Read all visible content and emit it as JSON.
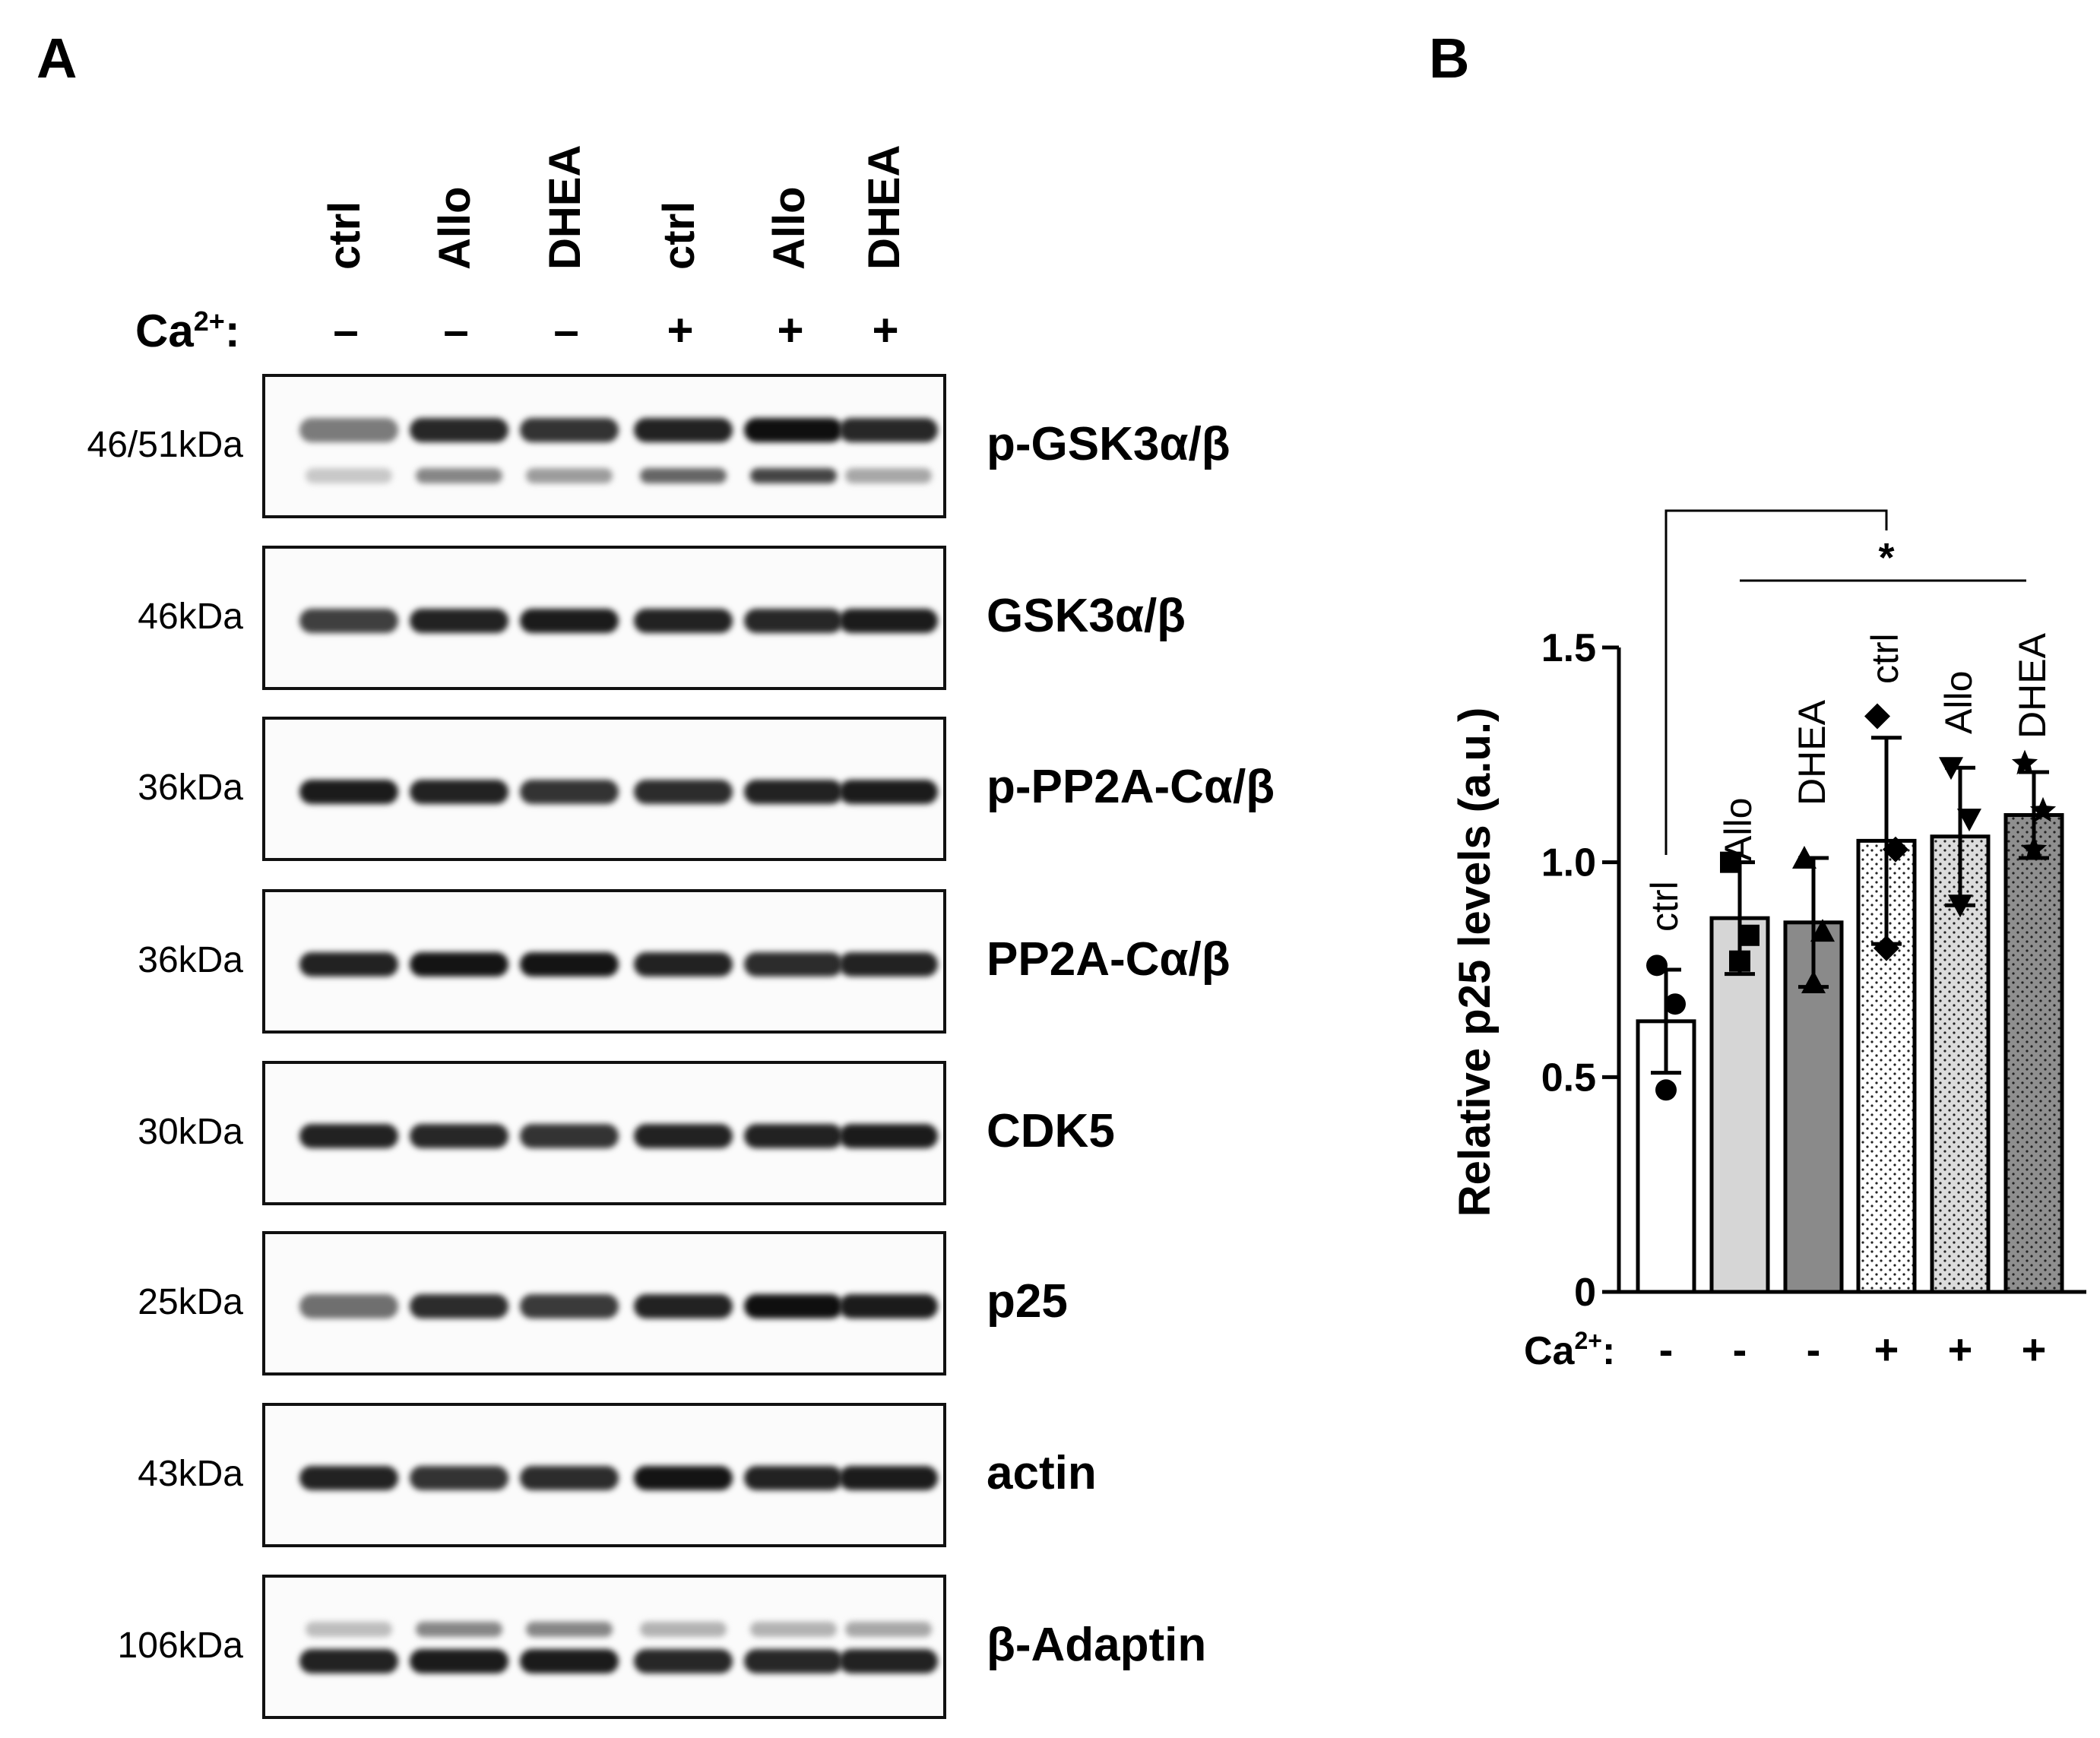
{
  "panels": {
    "a_label": "A",
    "b_label": "B"
  },
  "blot": {
    "lanes": [
      {
        "label": "ctrl",
        "ca": "–"
      },
      {
        "label": "Allo",
        "ca": "–"
      },
      {
        "label": "DHEA",
        "ca": "–"
      },
      {
        "label": "ctrl",
        "ca": "+"
      },
      {
        "label": "Allo",
        "ca": "+"
      },
      {
        "label": "DHEA",
        "ca": "+"
      }
    ],
    "ca_label": "Ca",
    "ca_sup": "2+",
    "ca_colon": ":",
    "rows": [
      {
        "protein": "p-GSK3α/β",
        "mw": "46/51kDa",
        "intensity": [
          0.55,
          0.9,
          0.85,
          0.92,
          1.0,
          0.9
        ],
        "second_band": [
          0.25,
          0.55,
          0.45,
          0.7,
          0.85,
          0.4
        ]
      },
      {
        "protein": "GSK3α/β",
        "mw": "46kDa",
        "intensity": [
          0.8,
          0.92,
          0.95,
          0.92,
          0.9,
          0.95
        ]
      },
      {
        "protein": "p-PP2A-Cα/β",
        "mw": "36kDa",
        "intensity": [
          0.95,
          0.92,
          0.85,
          0.88,
          0.92,
          0.95
        ]
      },
      {
        "protein": "PP2A-Cα/β",
        "mw": "36kDa",
        "intensity": [
          0.92,
          0.98,
          0.98,
          0.92,
          0.88,
          0.92
        ]
      },
      {
        "protein": "CDK5",
        "mw": "30kDa",
        "intensity": [
          0.92,
          0.9,
          0.85,
          0.92,
          0.92,
          0.95
        ]
      },
      {
        "protein": "p25",
        "mw": "25kDa",
        "intensity": [
          0.6,
          0.88,
          0.82,
          0.92,
          1.0,
          0.95
        ]
      },
      {
        "protein": "actin",
        "mw": "43kDa",
        "intensity": [
          0.92,
          0.85,
          0.88,
          0.98,
          0.92,
          0.95
        ]
      },
      {
        "protein": "β-Adaptin",
        "mw": "106kDa",
        "intensity": [
          0.92,
          0.95,
          0.95,
          0.9,
          0.9,
          0.92
        ],
        "second_band": [
          0.3,
          0.55,
          0.55,
          0.35,
          0.35,
          0.4
        ]
      }
    ]
  },
  "chart_data": {
    "type": "bar",
    "categories": [
      "ctrl",
      "Allo",
      "DHEA",
      "ctrl",
      "Allo",
      "DHEA"
    ],
    "ca": [
      "-",
      "-",
      "-",
      "+",
      "+",
      "+"
    ],
    "ca_label": "Ca",
    "ca_sup": "2+",
    "ca_colon": ":",
    "values": [
      0.63,
      0.87,
      0.86,
      1.05,
      1.06,
      1.11
    ],
    "sd": [
      0.12,
      0.13,
      0.15,
      0.24,
      0.16,
      0.1
    ],
    "points": [
      [
        0.76,
        0.67,
        0.47
      ],
      [
        1.0,
        0.83,
        0.77
      ],
      [
        1.01,
        0.84,
        0.72
      ],
      [
        1.34,
        1.03,
        0.8
      ],
      [
        1.22,
        1.1,
        0.9
      ],
      [
        1.23,
        1.12,
        1.03
      ]
    ],
    "markers": [
      "circle",
      "square",
      "triangle",
      "diamond",
      "triangle-down",
      "star"
    ],
    "fills": [
      "#ffffff",
      "#d6d6d6",
      "#8a8a8a",
      "#ffffff",
      "#dcdcdc",
      "#8f8f8f"
    ],
    "patterns": [
      "none",
      "none",
      "none",
      "dots",
      "dots",
      "dots"
    ],
    "ylabel": "Relative p25 levels (a.u.)",
    "ylim": [
      0,
      1.5
    ],
    "yticks": [
      "0",
      "0.5",
      "1.0",
      "1.5"
    ],
    "significance": "*"
  }
}
